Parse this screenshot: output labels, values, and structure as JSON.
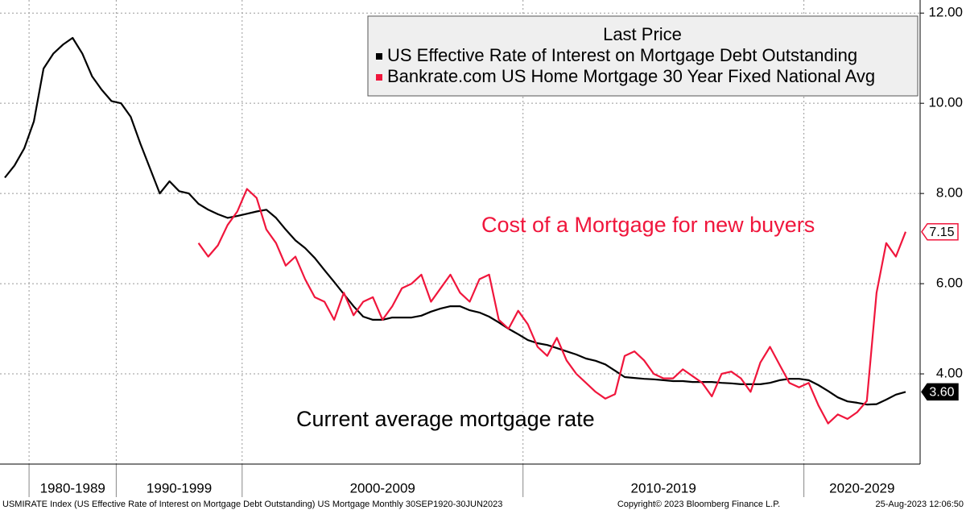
{
  "chart_data": {
    "type": "line",
    "legend": {
      "title": "Last Price",
      "position": "top-right"
    },
    "groups": [
      {
        "label": null,
        "count": 3
      },
      {
        "label": "1980-1989",
        "count": 9
      },
      {
        "label": "1990-1999",
        "count": 13
      },
      {
        "label": "2000-2009",
        "count": 29
      },
      {
        "label": "2010-2019",
        "count": 29
      },
      {
        "label": "2020-2029",
        "count": 12
      }
    ],
    "series": [
      {
        "name": "US Effective Rate of Interest on Mortgage Debt Outstanding",
        "color": "#000000",
        "last_value_label": "3.60",
        "values": [
          8.35,
          8.62,
          9.0,
          9.6,
          10.77,
          11.1,
          11.3,
          11.45,
          11.1,
          10.6,
          10.3,
          10.05,
          10.0,
          9.7,
          9.1,
          8.55,
          8.0,
          8.27,
          8.05,
          8.0,
          7.77,
          7.64,
          7.54,
          7.46,
          7.5,
          7.55,
          7.6,
          7.64,
          7.46,
          7.2,
          6.96,
          6.79,
          6.57,
          6.3,
          6.04,
          5.77,
          5.5,
          5.27,
          5.2,
          5.2,
          5.25,
          5.25,
          5.25,
          5.29,
          5.38,
          5.45,
          5.5,
          5.5,
          5.41,
          5.36,
          5.27,
          5.14,
          5.0,
          4.88,
          4.75,
          4.68,
          4.64,
          4.57,
          4.5,
          4.43,
          4.34,
          4.29,
          4.21,
          4.07,
          3.93,
          3.91,
          3.89,
          3.88,
          3.86,
          3.84,
          3.84,
          3.82,
          3.82,
          3.82,
          3.8,
          3.79,
          3.77,
          3.77,
          3.77,
          3.8,
          3.86,
          3.89,
          3.89,
          3.86,
          3.75,
          3.62,
          3.48,
          3.39,
          3.36,
          3.32,
          3.33,
          3.43,
          3.54,
          3.6,
          null
        ]
      },
      {
        "name": "Bankrate.com US Home Mortgage 30 Year Fixed National Avg",
        "color": "#f0163c",
        "last_value_label": "7.15",
        "values": [
          null,
          null,
          null,
          null,
          null,
          null,
          null,
          null,
          null,
          null,
          null,
          null,
          null,
          null,
          null,
          null,
          null,
          null,
          null,
          null,
          6.9,
          6.6,
          6.85,
          7.3,
          7.6,
          8.1,
          7.9,
          7.2,
          6.9,
          6.4,
          6.6,
          6.1,
          5.7,
          5.6,
          5.2,
          5.8,
          5.3,
          5.6,
          5.7,
          5.2,
          5.5,
          5.9,
          6.0,
          6.2,
          5.6,
          5.9,
          6.2,
          5.8,
          5.6,
          6.1,
          6.2,
          5.2,
          5.0,
          5.4,
          5.1,
          4.6,
          4.4,
          4.8,
          4.3,
          4.0,
          3.8,
          3.6,
          3.45,
          3.55,
          4.4,
          4.5,
          4.3,
          4.0,
          3.9,
          3.9,
          4.1,
          3.95,
          3.8,
          3.5,
          4.0,
          4.05,
          3.9,
          3.6,
          4.25,
          4.6,
          4.2,
          3.8,
          3.7,
          3.8,
          3.3,
          2.9,
          3.1,
          3.0,
          3.15,
          3.4,
          5.8,
          6.9,
          6.6,
          7.15,
          null
        ]
      }
    ],
    "ylim": [
      2,
      12.29
    ],
    "yticks": [
      {
        "value": 4,
        "label": "4.00"
      },
      {
        "value": 6,
        "label": "6.00"
      },
      {
        "value": 8,
        "label": "8.00"
      },
      {
        "value": 10,
        "label": "10.00"
      },
      {
        "value": 12,
        "label": "12.00"
      }
    ],
    "grid": true,
    "annotations": [
      {
        "text": "Cost of a Mortgage for new buyers",
        "color": "#f0163c"
      },
      {
        "text": "Current average mortgage rate",
        "color": "#000000"
      }
    ],
    "footer": {
      "source": "USMIRATE Index (US Effective Rate of Interest on Mortgage Debt Outstanding) US Mortgage  Monthly 30SEP1920-30JUN2023",
      "copyright": "Copyright© 2023 Bloomberg Finance L.P.",
      "timestamp": "25-Aug-2023 12:06:50"
    }
  }
}
